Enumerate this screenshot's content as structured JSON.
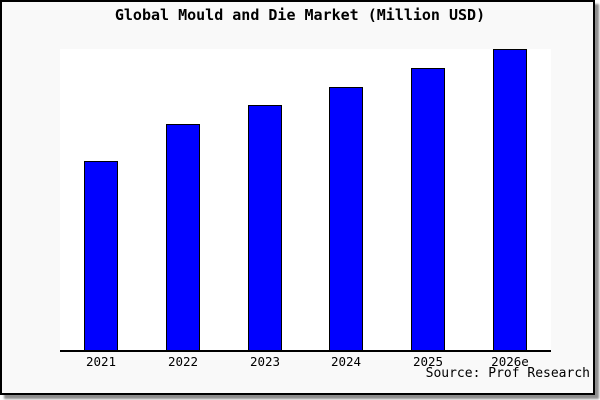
{
  "chart": {
    "title": "Global Mould and Die Market (Million USD)",
    "source": "Source: Prof Research"
  },
  "chart_data": {
    "type": "bar",
    "title": "Global Mould and Die Market (Million USD)",
    "categories": [
      "2021",
      "2022",
      "2023",
      "2024",
      "2025",
      "2026e"
    ],
    "values": [
      0.625,
      0.748,
      0.811,
      0.871,
      0.933,
      0.996
    ],
    "values_note": "No numeric y-axis, gridlines, or data labels are shown in the chart; values are relative bar heights normalized to the plot height (2026e bar nearly fills the plot).",
    "xlabel": "",
    "ylabel": "",
    "grid": false,
    "legend": "none",
    "y_axis_visible": false,
    "x_axis_line": true,
    "source": "Source: Prof Research"
  },
  "colors": {
    "bar_fill": "#0000ff",
    "bar_border": "#000000",
    "axis_line": "#000000",
    "card_background": "#f9f9f9",
    "plot_background": "#ffffff",
    "frame_border": "#000000",
    "drop_shadow": "#8c8c8c",
    "text": "#000000"
  }
}
